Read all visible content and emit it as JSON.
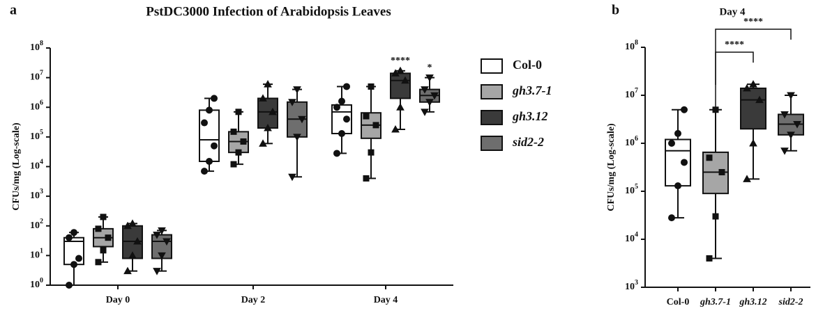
{
  "chart_data": [
    {
      "type": "box",
      "panel": "a",
      "title": "PstDC3000 Infection of Arabidopsis Leaves",
      "y_label": "CFUs/mg (Log-scale)",
      "log_scale": true,
      "ylim": [
        1,
        100000000
      ],
      "yticks": [
        {
          "value": 1,
          "label": "10^0"
        },
        {
          "value": 10,
          "label": "10^1"
        },
        {
          "value": 100,
          "label": "10^2"
        },
        {
          "value": 1000,
          "label": "10^3"
        },
        {
          "value": 10000,
          "label": "10^4"
        },
        {
          "value": 100000,
          "label": "10^5"
        },
        {
          "value": 1000000,
          "label": "10^6"
        },
        {
          "value": 10000000,
          "label": "10^7"
        },
        {
          "value": 100000000,
          "label": "10^8"
        }
      ],
      "categories": [
        "Day 0",
        "Day 2",
        "Day 4"
      ],
      "series": [
        {
          "name": "Col-0",
          "color": "#ffffff",
          "marker": "circle",
          "boxes": [
            {
              "min": 1,
              "q1": 5,
              "median": 30,
              "q3": 40,
              "max": 60,
              "points": [
                1,
                5,
                8,
                40,
                60
              ]
            },
            {
              "min": 7000,
              "q1": 15000,
              "median": 80000,
              "q3": 800000,
              "max": 2000000,
              "points": [
                7000,
                15000,
                50000,
                300000,
                800000,
                2000000
              ]
            },
            {
              "min": 28000,
              "q1": 130000,
              "median": 700000,
              "q3": 1200000,
              "max": 5000000,
              "points": [
                28000,
                130000,
                400000,
                1000000,
                1600000,
                5000000
              ]
            }
          ]
        },
        {
          "name": "gh3.7-1",
          "color": "#a6a6a6",
          "marker": "square",
          "boxes": [
            {
              "min": 6,
              "q1": 20,
              "median": 40,
              "q3": 80,
              "max": 200,
              "points": [
                6,
                15,
                40,
                80,
                200
              ]
            },
            {
              "min": 12000,
              "q1": 30000,
              "median": 70000,
              "q3": 150000,
              "max": 700000,
              "points": [
                12000,
                30000,
                70000,
                150000,
                700000
              ]
            },
            {
              "min": 4000,
              "q1": 90000,
              "median": 250000,
              "q3": 650000,
              "max": 5000000,
              "points": [
                4000,
                30000,
                250000,
                500000,
                5000000
              ]
            }
          ]
        },
        {
          "name": "gh3.12",
          "color": "#3a3a3a",
          "marker": "triangle-up",
          "boxes": [
            {
              "min": 3,
              "q1": 8,
              "median": 30,
              "q3": 100,
              "max": 120,
              "points": [
                3,
                10,
                30,
                100,
                120
              ]
            },
            {
              "min": 60000,
              "q1": 200000,
              "median": 700000,
              "q3": 2000000,
              "max": 6000000,
              "points": [
                60000,
                200000,
                700000,
                2000000,
                6000000
              ]
            },
            {
              "min": 180000,
              "q1": 2000000,
              "median": 8000000,
              "q3": 14000000,
              "max": 17000000,
              "points": [
                180000,
                1000000,
                8000000,
                14000000,
                17000000
              ]
            }
          ]
        },
        {
          "name": "sid2-2",
          "color": "#6e6e6e",
          "marker": "triangle-down",
          "boxes": [
            {
              "min": 3,
              "q1": 8,
              "median": 30,
              "q3": 50,
              "max": 70,
              "points": [
                3,
                10,
                30,
                50,
                70
              ]
            },
            {
              "min": 4500,
              "q1": 100000,
              "median": 400000,
              "q3": 1500000,
              "max": 4000000,
              "points": [
                4500,
                100000,
                400000,
                1500000,
                4000000
              ]
            },
            {
              "min": 700000,
              "q1": 1500000,
              "median": 2500000,
              "q3": 4000000,
              "max": 10000000,
              "points": [
                700000,
                1500000,
                2500000,
                4000000,
                10000000
              ]
            }
          ]
        }
      ],
      "annotations": [
        {
          "text": "****",
          "series": 2,
          "category": 2
        },
        {
          "text": "*",
          "series": 3,
          "category": 2
        }
      ]
    },
    {
      "type": "box",
      "panel": "b",
      "title": "Day 4",
      "y_label": "CFUs/mg (Log-scale)",
      "log_scale": true,
      "ylim": [
        1000,
        100000000
      ],
      "yticks": [
        {
          "value": 1000,
          "label": "10^3"
        },
        {
          "value": 10000,
          "label": "10^4"
        },
        {
          "value": 100000,
          "label": "10^5"
        },
        {
          "value": 1000000,
          "label": "10^6"
        },
        {
          "value": 10000000,
          "label": "10^7"
        },
        {
          "value": 100000000,
          "label": "10^8"
        }
      ],
      "categories": [
        "Col-0",
        "gh3.7-1",
        "gh3.12",
        "sid2-2"
      ],
      "series": [
        {
          "color": "#ffffff",
          "marker": "circle",
          "boxes": [
            {
              "min": 28000,
              "q1": 130000,
              "median": 700000,
              "q3": 1200000,
              "max": 5000000,
              "points": [
                28000,
                130000,
                400000,
                1000000,
                1600000,
                5000000
              ]
            }
          ]
        },
        {
          "color": "#a6a6a6",
          "marker": "square",
          "boxes": [
            {
              "min": 4000,
              "q1": 90000,
              "median": 250000,
              "q3": 650000,
              "max": 5000000,
              "points": [
                4000,
                30000,
                250000,
                500000,
                5000000
              ]
            }
          ]
        },
        {
          "color": "#3a3a3a",
          "marker": "triangle-up",
          "boxes": [
            {
              "min": 180000,
              "q1": 2000000,
              "median": 8000000,
              "q3": 14000000,
              "max": 17000000,
              "points": [
                180000,
                1000000,
                8000000,
                14000000,
                17000000
              ]
            }
          ]
        },
        {
          "color": "#6e6e6e",
          "marker": "triangle-down",
          "boxes": [
            {
              "min": 700000,
              "q1": 1500000,
              "median": 2500000,
              "q3": 4000000,
              "max": 10000000,
              "points": [
                700000,
                1500000,
                2500000,
                4000000,
                10000000
              ]
            }
          ]
        }
      ],
      "comparisons": [
        {
          "from": 1,
          "to": 2,
          "text": "****"
        },
        {
          "from": 1,
          "to": 3,
          "text": "****"
        }
      ]
    }
  ]
}
